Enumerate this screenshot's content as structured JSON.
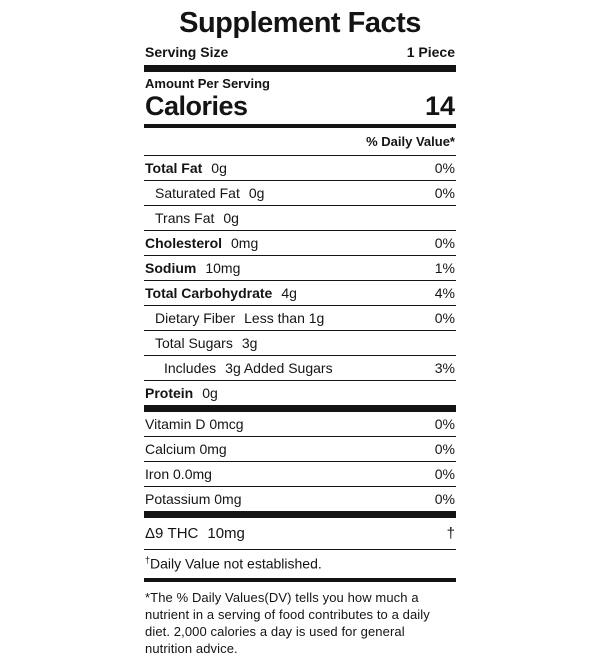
{
  "label": {
    "title": "Supplement Facts",
    "serving": {
      "label": "Serving Size",
      "value": "1 Piece"
    },
    "amount_per_serving": "Amount Per Serving",
    "calories": {
      "label": "Calories",
      "value": "14"
    },
    "daily_value_header": "% Daily Value*",
    "sections": [
      {
        "rows": [
          {
            "name": "Total Fat",
            "amount": "0g",
            "dv": "0%",
            "bold": true,
            "indent": 0
          },
          {
            "name": "Saturated Fat",
            "amount": "0g",
            "dv": "0%",
            "bold": false,
            "indent": 1
          },
          {
            "name": "Trans Fat",
            "amount": "0g",
            "dv": "",
            "bold": false,
            "indent": 1
          },
          {
            "name": "Cholesterol",
            "amount": "0mg",
            "dv": "0%",
            "bold": true,
            "indent": 0
          },
          {
            "name": "Sodium",
            "amount": "10mg",
            "dv": "1%",
            "bold": true,
            "indent": 0
          },
          {
            "name": "Total Carbohydrate",
            "amount": "4g",
            "dv": "4%",
            "bold": true,
            "indent": 0
          },
          {
            "name": "Dietary Fiber",
            "amount": "Less than 1g",
            "dv": "0%",
            "bold": false,
            "indent": 1
          },
          {
            "name": "Total Sugars",
            "amount": "3g",
            "dv": "",
            "bold": false,
            "indent": 1
          },
          {
            "name": "Includes",
            "amount": "3g Added Sugars",
            "dv": "3%",
            "bold": false,
            "indent": 2
          },
          {
            "name": "Protein",
            "amount": "0g",
            "dv": "",
            "bold": true,
            "indent": 0
          }
        ]
      },
      {
        "rows": [
          {
            "name": "Vitamin D 0mcg",
            "amount": "",
            "dv": "0%",
            "bold": false,
            "indent": 0
          },
          {
            "name": "Calcium 0mg",
            "amount": "",
            "dv": "0%",
            "bold": false,
            "indent": 0
          },
          {
            "name": "Iron 0.0mg",
            "amount": "",
            "dv": "0%",
            "bold": false,
            "indent": 0
          },
          {
            "name": "Potassium 0mg",
            "amount": "",
            "dv": "0%",
            "bold": false,
            "indent": 0
          }
        ]
      },
      {
        "rows": [
          {
            "name": "Δ9 THC",
            "amount": "10mg",
            "dv": "†",
            "bold": false,
            "indent": 0
          }
        ]
      }
    ],
    "dagger_note": {
      "symbol": "†",
      "text": "Daily Value not established."
    },
    "footnote": "*The % Daily Values(DV) tells you how much a nutrient in a serving of food contributes to a daily diet. 2,000 calories a day is used for general nutrition advice."
  }
}
